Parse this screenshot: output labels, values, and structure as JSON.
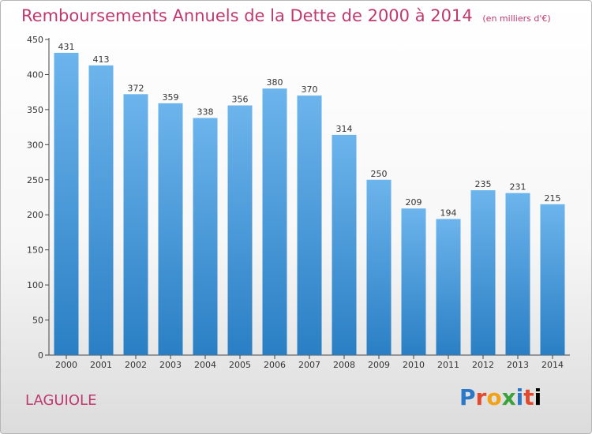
{
  "chart_data": {
    "type": "bar",
    "title": "Remboursements Annuels de la Dette de 2000 à 2014",
    "subtitle": "(en milliers d'€)",
    "categories": [
      "2000",
      "2001",
      "2002",
      "2003",
      "2004",
      "2005",
      "2006",
      "2007",
      "2008",
      "2009",
      "2010",
      "2011",
      "2012",
      "2013",
      "2014"
    ],
    "values": [
      431,
      413,
      372,
      359,
      338,
      356,
      380,
      370,
      314,
      250,
      209,
      194,
      235,
      231,
      215
    ],
    "xlabel": "",
    "ylabel": "",
    "ylim": [
      0,
      450
    ],
    "yticks": [
      0,
      50,
      100,
      150,
      200,
      250,
      300,
      350,
      400,
      450
    ],
    "grid": false,
    "bar_color_top": "#6cb4ec",
    "bar_color_bottom": "#2a7fc4"
  },
  "footer": {
    "city": "LAGUIOLE",
    "logo_letters": [
      "P",
      "r",
      "o",
      "x",
      "i",
      "t",
      "i"
    ],
    "title_color": "#c0396e"
  }
}
